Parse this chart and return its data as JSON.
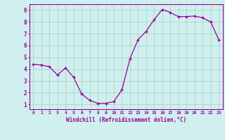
{
  "x": [
    0,
    1,
    2,
    3,
    4,
    5,
    6,
    7,
    8,
    9,
    10,
    11,
    12,
    13,
    14,
    15,
    16,
    17,
    18,
    19,
    20,
    21,
    22,
    23
  ],
  "y": [
    4.4,
    4.35,
    4.2,
    3.5,
    4.1,
    3.3,
    1.9,
    1.35,
    1.1,
    1.1,
    1.25,
    2.25,
    4.9,
    6.5,
    7.2,
    8.2,
    9.05,
    8.8,
    8.45,
    8.45,
    8.5,
    8.35,
    8.0,
    6.5
  ],
  "x_labels": [
    "0",
    "1",
    "2",
    "3",
    "4",
    "5",
    "6",
    "7",
    "8",
    "9",
    "10",
    "11",
    "12",
    "13",
    "14",
    "15",
    "16",
    "17",
    "18",
    "19",
    "20",
    "21",
    "22",
    "23"
  ],
  "y_ticks": [
    1,
    2,
    3,
    4,
    5,
    6,
    7,
    8,
    9
  ],
  "xlabel": "Windchill (Refroidissement éolien,°C)",
  "line_color": "#990099",
  "marker_color": "#990099",
  "bg_color": "#cff0ee",
  "grid_color": "#b0d8cc",
  "xlim": [
    -0.5,
    23.5
  ],
  "ylim": [
    0.6,
    9.5
  ]
}
